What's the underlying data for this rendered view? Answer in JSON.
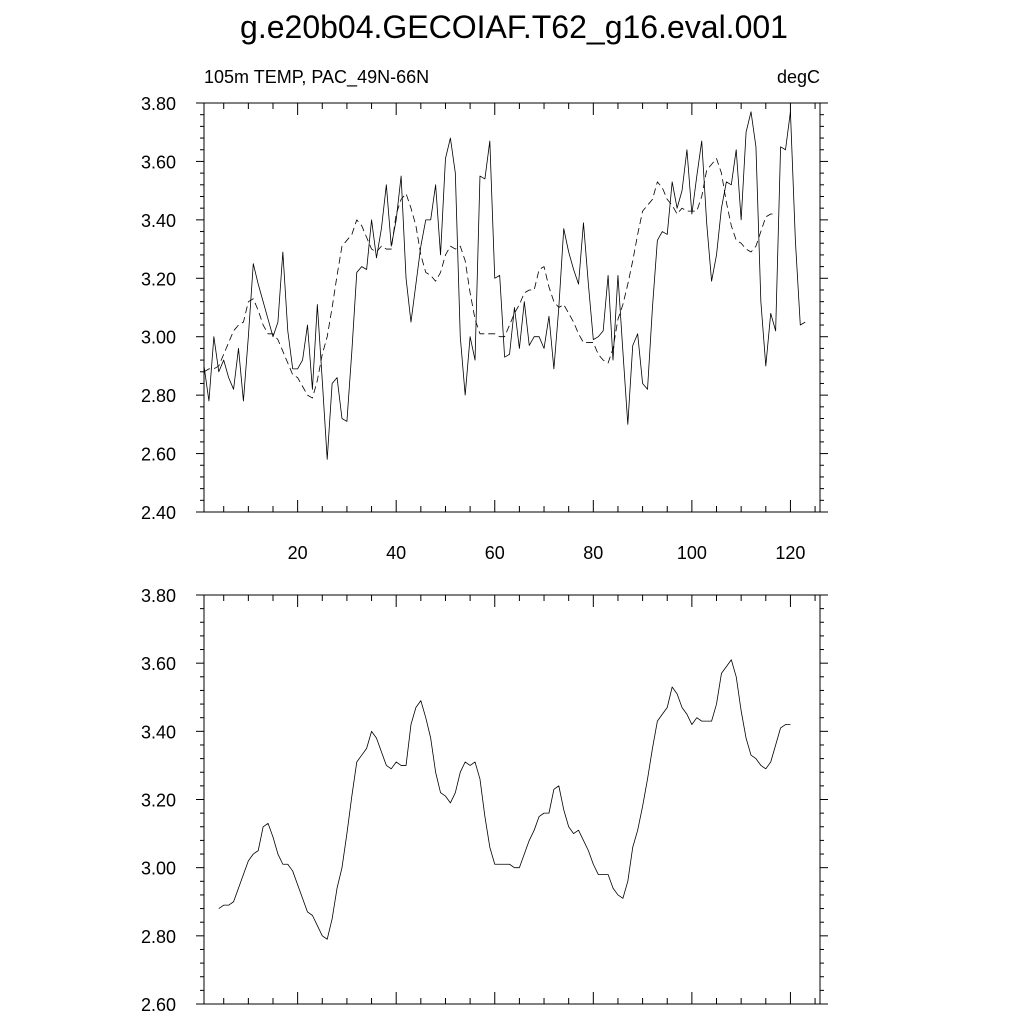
{
  "figure": {
    "title": "g.e20b04.GECOIAF.T62_g16.eval.001"
  },
  "chart_data": [
    {
      "type": "line",
      "left_label": "105m TEMP, PAC_49N-66N",
      "right_label": "degC",
      "xlim": [
        1,
        126
      ],
      "ylim": [
        2.4,
        3.8
      ],
      "x_ticks": [
        20,
        40,
        60,
        80,
        100,
        120
      ],
      "y_ticks": [
        "2.40",
        "2.60",
        "2.80",
        "3.00",
        "3.20",
        "3.40",
        "3.60",
        "3.80"
      ],
      "x_start": 1,
      "series": [
        {
          "style": "solid",
          "values": [
            2.9,
            2.78,
            3.0,
            2.88,
            2.92,
            2.86,
            2.82,
            2.96,
            2.78,
            3.0,
            3.25,
            3.18,
            3.12,
            3.06,
            3.0,
            3.05,
            3.29,
            3.02,
            2.89,
            2.89,
            2.92,
            3.04,
            2.82,
            3.11,
            2.85,
            2.58,
            2.84,
            2.86,
            2.72,
            2.71,
            2.95,
            3.22,
            3.24,
            3.23,
            3.4,
            3.27,
            3.37,
            3.52,
            3.31,
            3.4,
            3.55,
            3.2,
            3.05,
            3.18,
            3.31,
            3.4,
            3.4,
            3.52,
            3.28,
            3.61,
            3.68,
            3.56,
            3.0,
            2.8,
            3.0,
            2.92,
            3.55,
            3.54,
            3.67,
            3.2,
            3.21,
            2.93,
            2.94,
            3.1,
            2.96,
            3.12,
            2.97,
            3.0,
            3.0,
            2.96,
            3.07,
            2.89,
            3.1,
            3.37,
            3.29,
            3.23,
            3.18,
            3.39,
            3.18,
            2.99,
            3.0,
            3.02,
            3.21,
            2.92,
            3.21,
            2.95,
            2.7,
            2.97,
            3.01,
            2.84,
            2.82,
            3.1,
            3.33,
            3.36,
            3.35,
            3.53,
            3.44,
            3.5,
            3.64,
            3.42,
            3.55,
            3.67,
            3.39,
            3.19,
            3.28,
            3.44,
            3.53,
            3.52,
            3.64,
            3.4,
            3.7,
            3.77,
            3.65,
            3.12,
            2.9,
            3.08,
            3.02,
            3.65,
            3.64,
            3.77,
            3.33,
            3.04,
            3.05
          ]
        },
        {
          "style": "dashed",
          "values": [
            2.88,
            2.89,
            2.89,
            2.9,
            2.94,
            2.98,
            3.02,
            3.04,
            3.05,
            3.12,
            3.13,
            3.09,
            3.04,
            3.01,
            3.01,
            2.99,
            2.95,
            2.91,
            2.87,
            2.86,
            2.83,
            2.8,
            2.79,
            2.85,
            2.94,
            3.0,
            3.1,
            3.21,
            3.31,
            3.33,
            3.35,
            3.4,
            3.38,
            3.34,
            3.3,
            3.29,
            3.31,
            3.3,
            3.3,
            3.42,
            3.47,
            3.49,
            3.44,
            3.38,
            3.28,
            3.22,
            3.21,
            3.19,
            3.22,
            3.28,
            3.31,
            3.3,
            3.31,
            3.26,
            3.15,
            3.06,
            3.01,
            3.01,
            3.01,
            3.01,
            3.0,
            3.0,
            3.04,
            3.08,
            3.11,
            3.15,
            3.16,
            3.16,
            3.23,
            3.24,
            3.17,
            3.12,
            3.1,
            3.11,
            3.08,
            3.05,
            3.01,
            2.98,
            2.98,
            2.98,
            2.94,
            2.92,
            2.91,
            2.96,
            3.06,
            3.11,
            3.18,
            3.26,
            3.35,
            3.43,
            3.45,
            3.47,
            3.53,
            3.51,
            3.47,
            3.45,
            3.42,
            3.44,
            3.43,
            3.43,
            3.43,
            3.48,
            3.57,
            3.59,
            3.61,
            3.56,
            3.46,
            3.38,
            3.33,
            3.32,
            3.3,
            3.29,
            3.31,
            3.36,
            3.41,
            3.42,
            3.42
          ]
        }
      ]
    },
    {
      "type": "line",
      "xlim": [
        1,
        126
      ],
      "ylim": [
        2.6,
        3.8
      ],
      "x_ticks": [
        20,
        40,
        60,
        80,
        100,
        120
      ],
      "y_ticks": [
        "2.60",
        "2.80",
        "3.00",
        "3.20",
        "3.40",
        "3.60",
        "3.80"
      ],
      "x_start": 4,
      "series": [
        {
          "style": "solid",
          "values": [
            2.88,
            2.89,
            2.89,
            2.9,
            2.94,
            2.98,
            3.02,
            3.04,
            3.05,
            3.12,
            3.13,
            3.09,
            3.04,
            3.01,
            3.01,
            2.99,
            2.95,
            2.91,
            2.87,
            2.86,
            2.83,
            2.8,
            2.79,
            2.85,
            2.94,
            3.0,
            3.1,
            3.21,
            3.31,
            3.33,
            3.35,
            3.4,
            3.38,
            3.34,
            3.3,
            3.29,
            3.31,
            3.3,
            3.3,
            3.42,
            3.47,
            3.49,
            3.44,
            3.38,
            3.28,
            3.22,
            3.21,
            3.19,
            3.22,
            3.28,
            3.31,
            3.3,
            3.31,
            3.26,
            3.15,
            3.06,
            3.01,
            3.01,
            3.01,
            3.01,
            3.0,
            3.0,
            3.04,
            3.08,
            3.11,
            3.15,
            3.16,
            3.16,
            3.23,
            3.24,
            3.17,
            3.12,
            3.1,
            3.11,
            3.08,
            3.05,
            3.01,
            2.98,
            2.98,
            2.98,
            2.94,
            2.92,
            2.91,
            2.96,
            3.06,
            3.11,
            3.18,
            3.26,
            3.35,
            3.43,
            3.45,
            3.47,
            3.53,
            3.51,
            3.47,
            3.45,
            3.42,
            3.44,
            3.43,
            3.43,
            3.43,
            3.48,
            3.57,
            3.59,
            3.61,
            3.56,
            3.46,
            3.38,
            3.33,
            3.32,
            3.3,
            3.29,
            3.31,
            3.36,
            3.41,
            3.42,
            3.42
          ]
        }
      ]
    }
  ]
}
